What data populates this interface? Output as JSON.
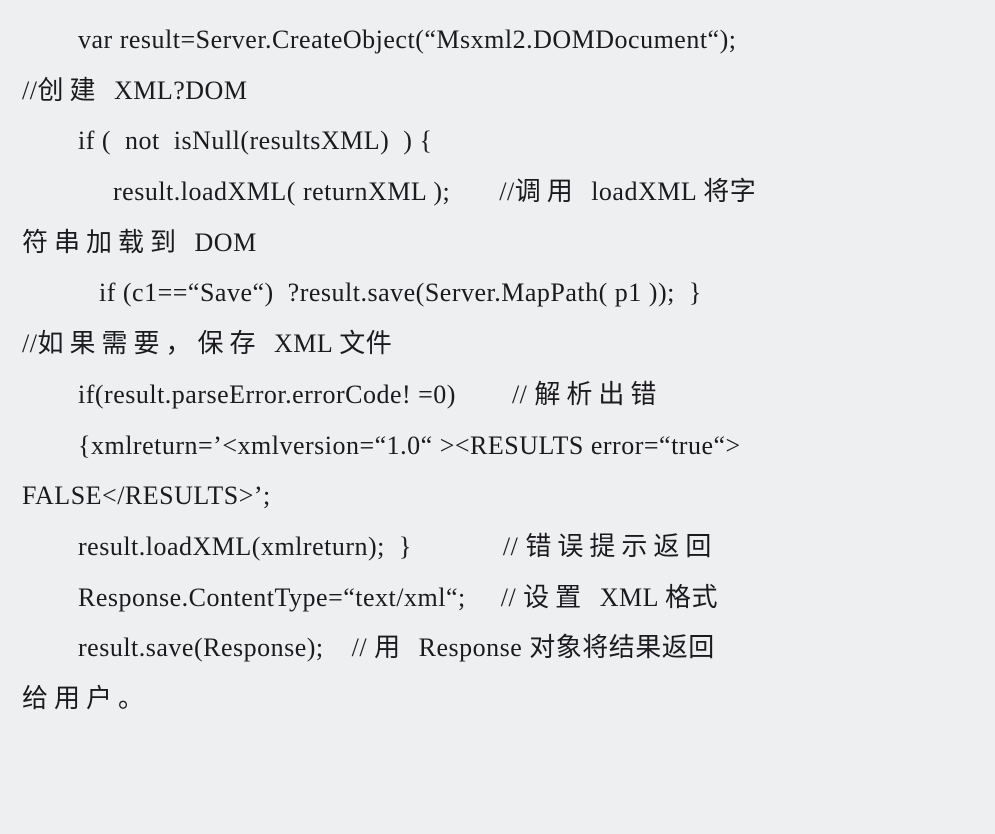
{
  "code": {
    "text_color": "#1b1a1e",
    "background_color": "#edeff0",
    "font_family_latin": "Times New Roman",
    "font_family_cjk": "SimSun",
    "base_fontsize": 26,
    "line_height": 1.95,
    "lines": [
      {
        "indent": "        ",
        "pre": "var result=Server.CreateObject(“Msxml2.DOMDocument“);",
        "cjk": "",
        "post": ""
      },
      {
        "indent": "",
        "pre": "//",
        "cjk": "创建 ",
        "post": "XML?DOM"
      },
      {
        "indent": "        ",
        "pre": "if (  not  isNull(resultsXML)  ) {",
        "cjk": "",
        "post": ""
      },
      {
        "indent": "             ",
        "pre": "result.loadXML( returnXML );       //",
        "cjk": "调用 ",
        "post": "loadXML 将字"
      },
      {
        "indent": "",
        "pre": "",
        "cjk": "符串加载到 ",
        "post": "DOM"
      },
      {
        "indent": "           ",
        "pre": "if (c1==“Save“)  ?result.save(Server.MapPath( p1 ));  }",
        "cjk": "",
        "post": ""
      },
      {
        "indent": "",
        "pre": "//",
        "cjk": "如果需要，保存 ",
        "post": "XML 文件"
      },
      {
        "indent": "        ",
        "pre": "if(result.parseError.errorCode! =0)        // ",
        "cjk": "解析出错",
        "post": ""
      },
      {
        "indent": "        ",
        "pre": "{xmlreturn=’<xmlversion=“1.0“ ><RESULTS error=“true“>",
        "cjk": "",
        "post": ""
      },
      {
        "indent": "",
        "pre": "FALSE</RESULTS>’;",
        "cjk": "",
        "post": ""
      },
      {
        "indent": "        ",
        "pre": "result.loadXML(xmlreturn);  }             // ",
        "cjk": "错误提示返回",
        "post": ""
      },
      {
        "indent": "        ",
        "pre": "Response.ContentType=“text/xml“;     // ",
        "cjk": "设置 ",
        "post": "XML 格式"
      },
      {
        "indent": "        ",
        "pre": "result.save(Response);    // ",
        "cjk": "用 ",
        "post": "Response 对象将结果返回"
      },
      {
        "indent": "",
        "pre": "",
        "cjk": "给用户。",
        "post": ""
      }
    ]
  }
}
